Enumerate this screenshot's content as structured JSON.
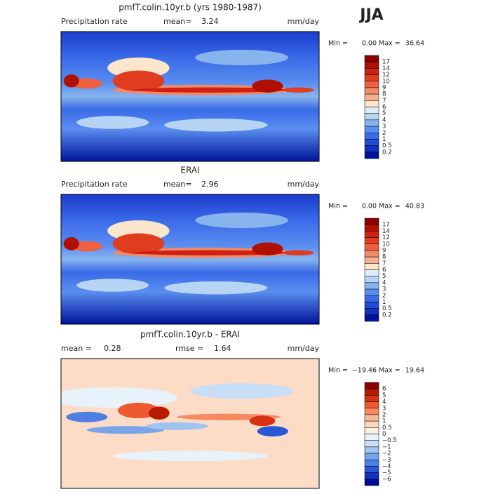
{
  "title": "JJA",
  "panels": [
    {
      "title": "pmfT.colin.10yr.b (yrs 1980-1987)",
      "left_label": "Precipitation rate",
      "mean_label": "mean=",
      "mean": "3.24",
      "units": "mm/day",
      "min_label": "Min =",
      "min": "0.00",
      "max_label": "Max =",
      "max": "36.64",
      "colorbar": {
        "labels": [
          "17",
          "14",
          "12",
          "10",
          "9",
          "8",
          "7",
          "6",
          "5",
          "4",
          "3",
          "2",
          "1",
          "0.5",
          "0.2"
        ],
        "colors": [
          "#8b0000",
          "#b01000",
          "#d02010",
          "#e03c20",
          "#ee6040",
          "#f08a6a",
          "#f5b090",
          "#fbe6cc",
          "#e0ecf8",
          "#b8d4f4",
          "#88b4ee",
          "#5a8ef0",
          "#3a6ae8",
          "#2448d8",
          "#1030c0",
          "#00129a"
        ]
      }
    },
    {
      "title": "ERAI",
      "left_label": "Precipitation rate",
      "mean_label": "mean=",
      "mean": "2.96",
      "units": "mm/day",
      "min_label": "Min =",
      "min": "0.00",
      "max_label": "Max =",
      "max": "40.83",
      "colorbar": {
        "labels": [
          "17",
          "14",
          "12",
          "10",
          "9",
          "8",
          "7",
          "6",
          "5",
          "4",
          "3",
          "2",
          "1",
          "0.5",
          "0.2"
        ],
        "colors": [
          "#8b0000",
          "#b01000",
          "#d02010",
          "#e03c20",
          "#ee6040",
          "#f08a6a",
          "#f5b090",
          "#fbe6cc",
          "#e0ecf8",
          "#b8d4f4",
          "#88b4ee",
          "#5a8ef0",
          "#3a6ae8",
          "#2448d8",
          "#1030c0",
          "#00129a"
        ]
      }
    },
    {
      "title": "pmfT.colin.10yr.b - ERAI",
      "mean_label": "mean =",
      "mean": "0.28",
      "rmse_label": "rmse =",
      "rmse": "1.64",
      "units": "mm/day",
      "min_label": "Min =",
      "min": "−19.46",
      "max_label": "Max =",
      "max": "19.64",
      "colorbar": {
        "labels": [
          "6",
          "5",
          "4",
          "3",
          "2",
          "1",
          "0.5",
          "0",
          "−0.5",
          "−1",
          "−2",
          "−3",
          "−4",
          "−5",
          "−6"
        ],
        "colors": [
          "#8b0000",
          "#b81a00",
          "#d83010",
          "#ee5a30",
          "#f58a60",
          "#f9b898",
          "#fcd8c0",
          "#fdeee0",
          "#e8f2fb",
          "#c8def6",
          "#a0c4f0",
          "#78a4ea",
          "#4c7ee4",
          "#2a56d8",
          "#1232c0",
          "#000a9a"
        ]
      }
    }
  ]
}
